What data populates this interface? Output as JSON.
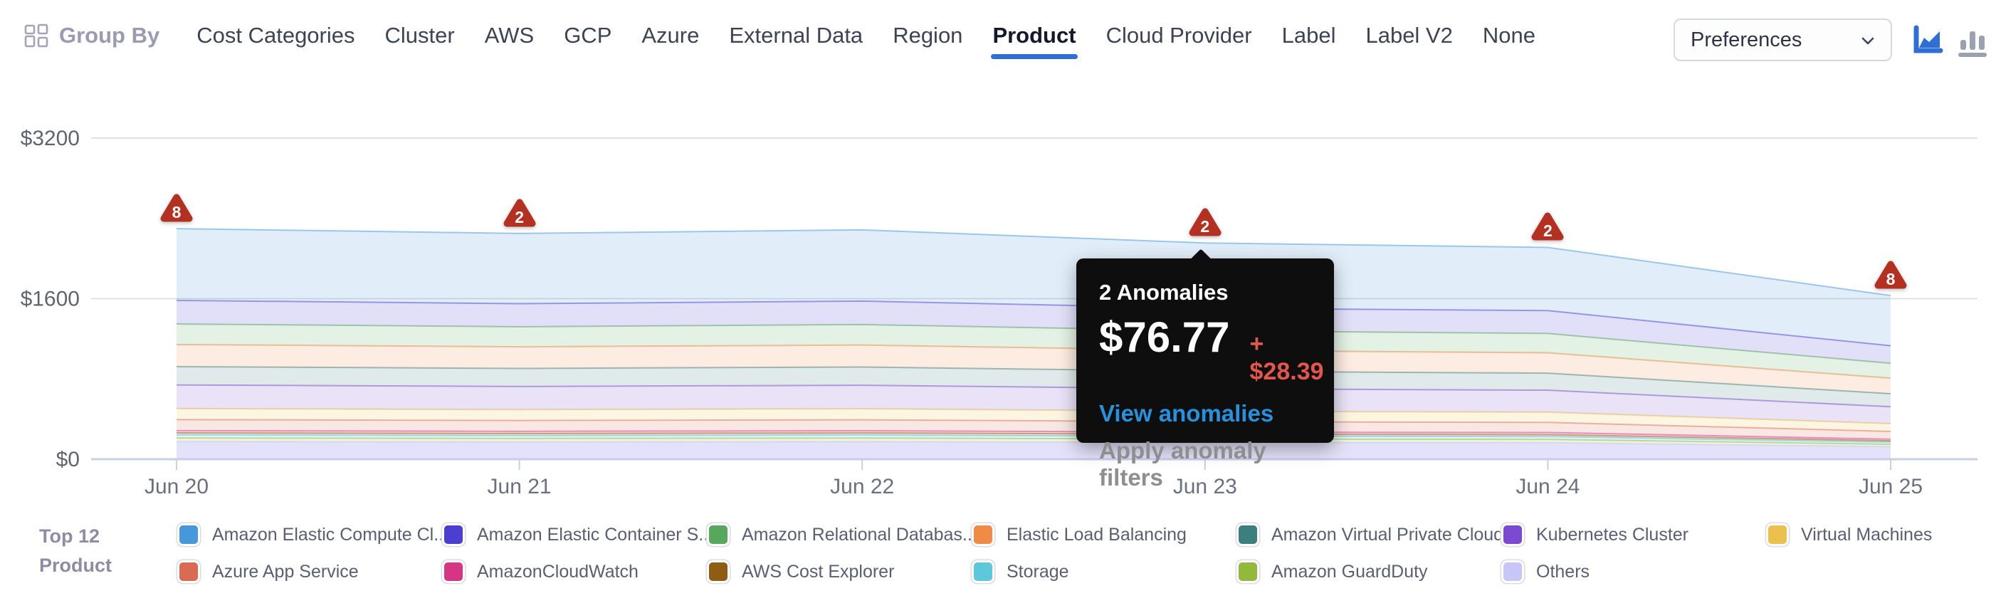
{
  "nav": {
    "group_by_label": "Group By",
    "tabs": [
      {
        "label": "Cost Categories"
      },
      {
        "label": "Cluster"
      },
      {
        "label": "AWS"
      },
      {
        "label": "GCP"
      },
      {
        "label": "Azure"
      },
      {
        "label": "External Data"
      },
      {
        "label": "Region"
      },
      {
        "label": "Product"
      },
      {
        "label": "Cloud Provider"
      },
      {
        "label": "Label"
      },
      {
        "label": "Label V2"
      },
      {
        "label": "None"
      }
    ],
    "active_tab": "Product"
  },
  "toolbar": {
    "preferences_label": "Preferences"
  },
  "icons": {
    "group_by": "grid-icon",
    "preferences": "chevron-down-icon",
    "area_chart": "area-chart-icon",
    "bar_chart": "bar-chart-icon",
    "anomaly": "warning-triangle-icon"
  },
  "colors": {
    "active_tab_underline": "#2e6fd6",
    "area_icon_active": "#2e6fd6",
    "bar_icon_inactive": "#9aa2b1",
    "anomaly_marker": "#b43020",
    "axis_line": "#c7cfe9",
    "gridline": "#d9d9de"
  },
  "tooltip": {
    "title": "2 Anomalies",
    "value": "$76.77",
    "delta": "+ $28.39",
    "link": "View anomalies",
    "action": "Apply anomaly filters",
    "anchor_category": "Jun 23",
    "colors": {
      "background": "#0e0e0e",
      "delta": "#e2574b",
      "link": "#2791dd",
      "action": "#8e8e8e"
    }
  },
  "legend": {
    "title_lines": [
      "Top 12",
      "Product"
    ]
  },
  "chart_data": {
    "type": "area",
    "stacked": true,
    "title": "",
    "xlabel": "",
    "ylabel": "",
    "grid": true,
    "legend_position": "bottom",
    "categories": [
      "Jun 20",
      "Jun 21",
      "Jun 22",
      "Jun 23",
      "Jun 24",
      "Jun 25"
    ],
    "ylim": [
      0,
      3200
    ],
    "y_ticks": [
      0,
      1600,
      3200
    ],
    "y_tick_labels": [
      "$0",
      "$1600",
      "$3200"
    ],
    "series": [
      {
        "name": "Amazon Elastic Compute Cl...",
        "color": "#4698db",
        "values": [
          715,
          700,
          710,
          650,
          630,
          500
        ]
      },
      {
        "name": "Amazon Elastic Container S...",
        "color": "#4b3fd1",
        "values": [
          235,
          230,
          234,
          225,
          228,
          175
        ]
      },
      {
        "name": "Amazon Relational Databas...",
        "color": "#57a75c",
        "values": [
          205,
          200,
          204,
          196,
          192,
          148
        ]
      },
      {
        "name": "Elastic Load Balancing",
        "color": "#ee8b46",
        "values": [
          220,
          215,
          219,
          208,
          203,
          155
        ]
      },
      {
        "name": "Amazon Virtual Private Cloud",
        "color": "#3d7f7f",
        "values": [
          183,
          180,
          182,
          174,
          170,
          130
        ]
      },
      {
        "name": "Kubernetes Cluster",
        "color": "#7a4bd0",
        "values": [
          235,
          231,
          234,
          224,
          219,
          168
        ]
      },
      {
        "name": "Virtual Machines",
        "color": "#ecc04d",
        "values": [
          110,
          108,
          110,
          104,
          102,
          78
        ]
      },
      {
        "name": "Azure App Service",
        "color": "#d96b55",
        "values": [
          110,
          108,
          109,
          104,
          101,
          77
        ]
      },
      {
        "name": "AmazonCloudWatch",
        "color": "#d63585",
        "values": [
          22,
          22,
          22,
          21,
          21,
          16
        ]
      },
      {
        "name": "AWS Cost Explorer",
        "color": "#8f5c13",
        "values": [
          22,
          21,
          22,
          21,
          20,
          15
        ]
      },
      {
        "name": "Storage",
        "color": "#5ec8db",
        "values": [
          29,
          28,
          29,
          27,
          27,
          20
        ]
      },
      {
        "name": "Amazon GuardDuty",
        "color": "#93b93c",
        "values": [
          36,
          35,
          36,
          34,
          33,
          25
        ]
      },
      {
        "name": "Others",
        "color": "#c9c5f6",
        "values": [
          176,
          172,
          175,
          167,
          165,
          124
        ]
      }
    ],
    "anomalies": [
      {
        "category": "Jun 20",
        "count": 8
      },
      {
        "category": "Jun 21",
        "count": 2
      },
      {
        "category": "Jun 23",
        "count": 2
      },
      {
        "category": "Jun 24",
        "count": 2
      },
      {
        "category": "Jun 25",
        "count": 8
      }
    ]
  }
}
